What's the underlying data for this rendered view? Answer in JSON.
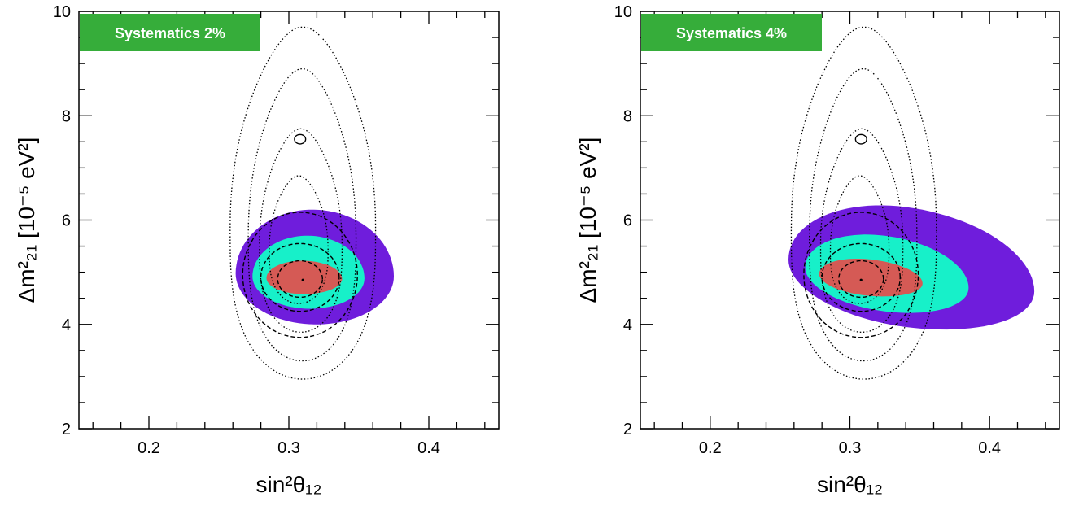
{
  "colors": {
    "level_outer": "#6f1ddc",
    "level_middle": "#17f0c9",
    "level_inner": "#d55a55",
    "badge": "#36ad3a",
    "line": "#000000"
  },
  "chart_data": [
    {
      "type": "contour",
      "badge": "Systematics 2%",
      "xlabel": "sin²θ₁₂",
      "ylabel": "Δm²₂₁ [10⁻⁵ eV²]",
      "xlim": [
        0.15,
        0.45
      ],
      "ylim": [
        2,
        10
      ],
      "xticks": [
        "0.2",
        "0.3",
        "0.4"
      ],
      "xtick_values": [
        0.2,
        0.3,
        0.4
      ],
      "yticks": [
        "2",
        "4",
        "6",
        "8",
        "10"
      ],
      "ytick_values": [
        2,
        4,
        6,
        8,
        10
      ],
      "best_fit": [
        0.31,
        4.85
      ],
      "filled_contours": [
        {
          "level": "outer",
          "center": [
            0.318,
            4.95
          ],
          "x_left": 0.262,
          "x_right": 0.375,
          "y_bottom": 4.0,
          "y_top": 6.2,
          "tilt": "none"
        },
        {
          "level": "middle",
          "center": [
            0.314,
            4.9
          ],
          "x_left": 0.274,
          "x_right": 0.354,
          "y_bottom": 4.3,
          "y_top": 5.7,
          "tilt": "none"
        },
        {
          "level": "inner",
          "center": [
            0.31,
            4.88
          ],
          "x_left": 0.284,
          "x_right": 0.338,
          "y_bottom": 4.58,
          "y_top": 5.22,
          "tilt": "none"
        }
      ],
      "dashed_contours": [
        {
          "center": [
            0.308,
            4.87
          ],
          "x_half": 0.016,
          "y_half": 0.35
        },
        {
          "center": [
            0.308,
            4.9
          ],
          "x_half": 0.028,
          "y_half": 0.65
        },
        {
          "center": [
            0.308,
            4.95
          ],
          "x_half": 0.041,
          "y_half": 1.2
        }
      ],
      "dotted_contours": [
        {
          "x_left": 0.286,
          "x_right": 0.328,
          "y_bottom": 4.4,
          "y_top": 6.85
        },
        {
          "x_left": 0.279,
          "x_right": 0.338,
          "y_bottom": 3.85,
          "y_top": 7.75
        },
        {
          "x_left": 0.271,
          "x_right": 0.348,
          "y_bottom": 3.3,
          "y_top": 8.9
        },
        {
          "x_left": 0.258,
          "x_right": 0.362,
          "y_bottom": 2.95,
          "y_top": 9.7
        }
      ],
      "small_contour": {
        "center": [
          0.308,
          7.55
        ],
        "x_half": 0.004,
        "y_half": 0.09
      }
    },
    {
      "type": "contour",
      "badge": "Systematics 4%",
      "xlabel": "sin²θ₁₂",
      "ylabel": "Δm²₂₁ [10⁻⁵ eV²]",
      "xlim": [
        0.15,
        0.45
      ],
      "ylim": [
        2,
        10
      ],
      "xticks": [
        "0.2",
        "0.3",
        "0.4"
      ],
      "xtick_values": [
        0.2,
        0.3,
        0.4
      ],
      "yticks": [
        "2",
        "4",
        "6",
        "8",
        "10"
      ],
      "ytick_values": [
        2,
        4,
        6,
        8,
        10
      ],
      "best_fit": [
        0.308,
        4.85
      ],
      "filled_contours": [
        {
          "level": "outer",
          "center": [
            0.34,
            4.95
          ],
          "x_left": 0.256,
          "x_right": 0.432,
          "y_bottom": 3.95,
          "y_top": 6.25,
          "tilt": "down-right"
        },
        {
          "level": "middle",
          "center": [
            0.325,
            4.9
          ],
          "x_left": 0.268,
          "x_right": 0.385,
          "y_bottom": 4.25,
          "y_top": 5.7,
          "tilt": "down-right"
        },
        {
          "level": "inner",
          "center": [
            0.313,
            4.88
          ],
          "x_left": 0.278,
          "x_right": 0.352,
          "y_bottom": 4.55,
          "y_top": 5.25,
          "tilt": "down-right"
        }
      ],
      "dashed_contours": [
        {
          "center": [
            0.308,
            4.87
          ],
          "x_half": 0.016,
          "y_half": 0.35
        },
        {
          "center": [
            0.308,
            4.9
          ],
          "x_half": 0.028,
          "y_half": 0.65
        },
        {
          "center": [
            0.308,
            4.95
          ],
          "x_half": 0.041,
          "y_half": 1.2
        }
      ],
      "dotted_contours": [
        {
          "x_left": 0.286,
          "x_right": 0.328,
          "y_bottom": 4.4,
          "y_top": 6.85
        },
        {
          "x_left": 0.279,
          "x_right": 0.338,
          "y_bottom": 3.85,
          "y_top": 7.75
        },
        {
          "x_left": 0.271,
          "x_right": 0.348,
          "y_bottom": 3.3,
          "y_top": 8.9
        },
        {
          "x_left": 0.258,
          "x_right": 0.362,
          "y_bottom": 2.95,
          "y_top": 9.7
        }
      ],
      "small_contour": {
        "center": [
          0.308,
          7.55
        ],
        "x_half": 0.004,
        "y_half": 0.09
      }
    }
  ]
}
